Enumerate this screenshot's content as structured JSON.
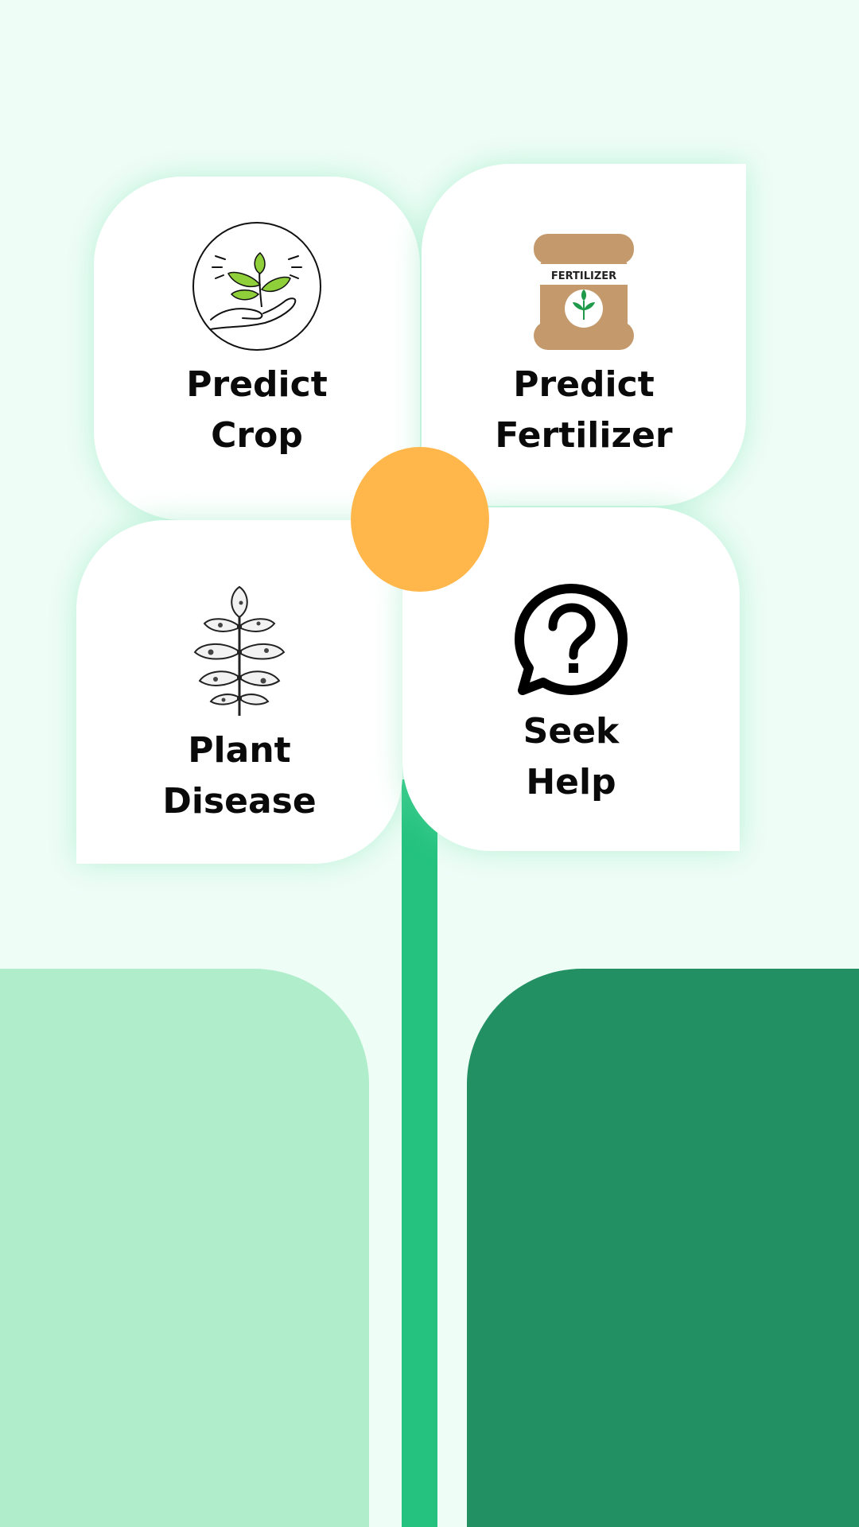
{
  "menu": {
    "cards": [
      {
        "label_line1": "Predict",
        "label_line2": "Crop",
        "icon": "plant-in-hand-icon"
      },
      {
        "label_line1": "Predict",
        "label_line2": "Fertilizer",
        "icon": "fertilizer-bag-icon",
        "icon_text": "FERTILIZER"
      },
      {
        "label_line1": "Plant",
        "label_line2": "Disease",
        "icon": "diseased-leaf-icon"
      },
      {
        "label_line1": "Seek",
        "label_line2": "Help",
        "icon": "question-chat-icon"
      }
    ]
  },
  "colors": {
    "background": "#effdf7",
    "stem": "#25c27f",
    "leaf_light": "#b0edcb",
    "leaf_dark": "#229063",
    "center": "#ffb74b",
    "bag": "#c49a6c",
    "leaf_green": "#8fcf3a"
  }
}
